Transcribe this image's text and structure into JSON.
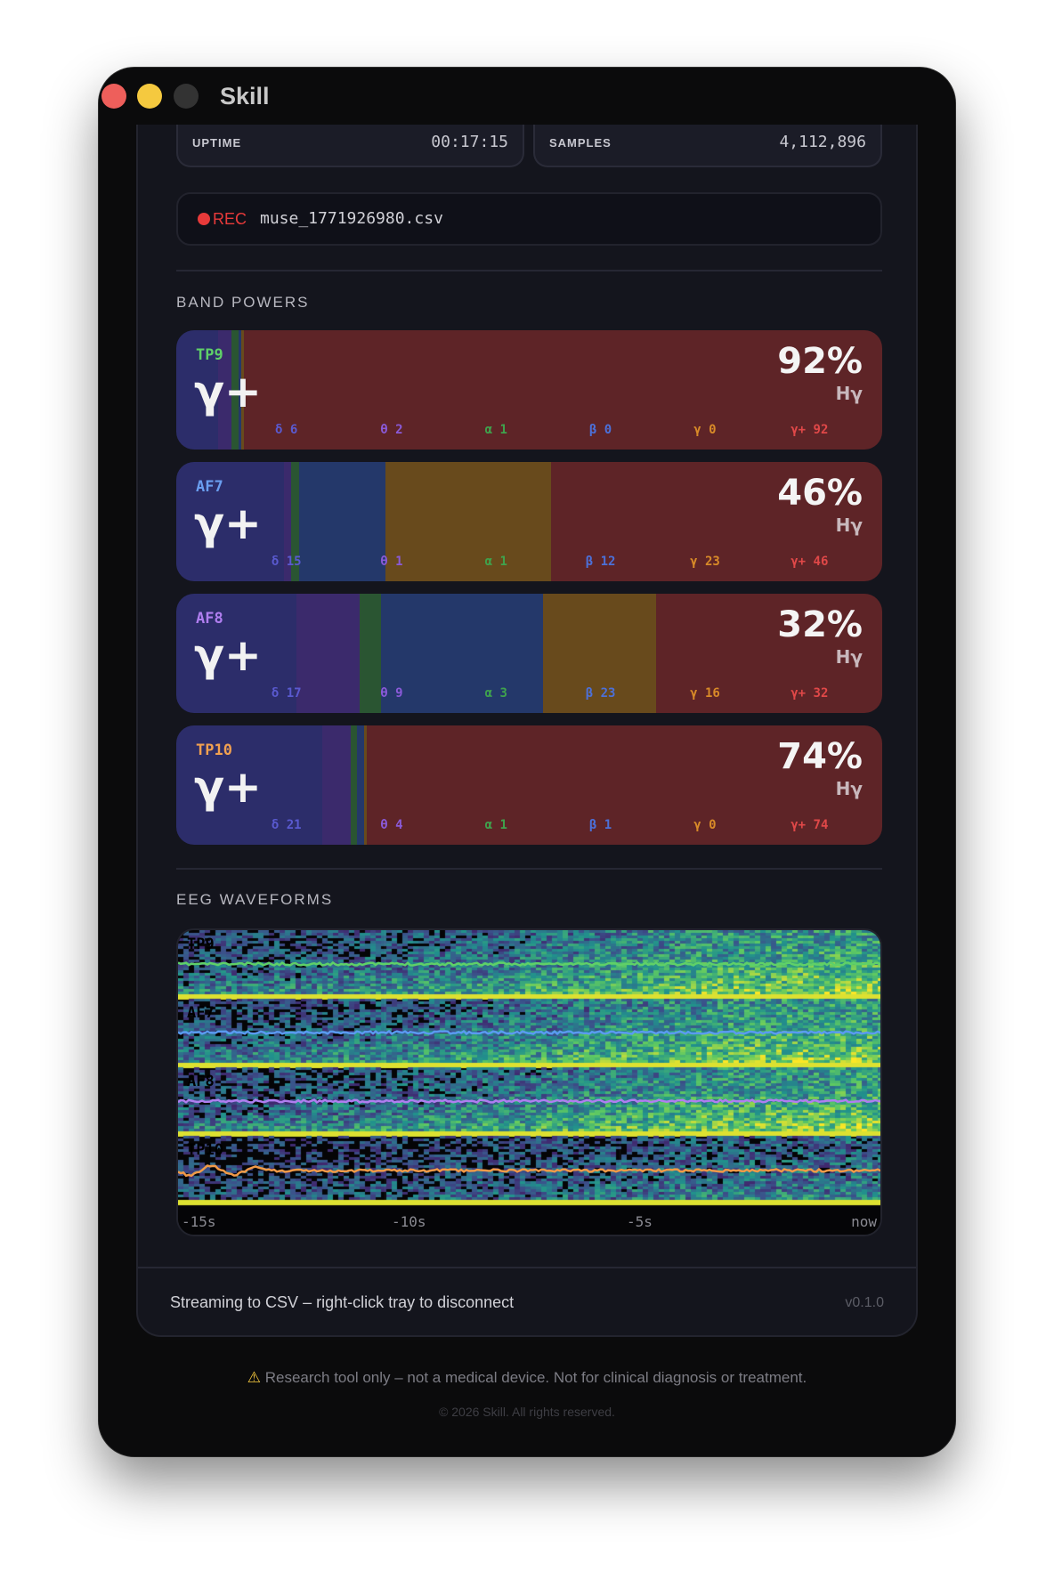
{
  "window": {
    "title": "Skill"
  },
  "stats": [
    {
      "label": "UPTIME",
      "value": "00:17:15"
    },
    {
      "label": "SAMPLES",
      "value": "4,112,896"
    }
  ],
  "recording": {
    "badge": "REC",
    "filename": "muse_1771926980.csv"
  },
  "band_powers": {
    "title": "BAND POWERS",
    "colors": {
      "delta": "#2c2d6a",
      "theta": "#3b2a6c",
      "alpha": "#2a5532",
      "beta": "#24386a",
      "gamma": "#684a1c",
      "gamma_plus": "#5e2427"
    },
    "label_colors": {
      "delta": "#5a5ad0",
      "theta": "#8a5ad8",
      "alpha": "#3fa34d",
      "beta": "#4c70d8",
      "gamma": "#d88a28",
      "gamma_plus": "#e04848"
    },
    "channels": [
      {
        "name": "TP9",
        "color": "#5fd068",
        "dominant": "γ+",
        "percent": "92%",
        "unit": "Hγ",
        "bands": [
          {
            "sym": "δ",
            "val": 6
          },
          {
            "sym": "θ",
            "val": 2
          },
          {
            "sym": "α",
            "val": 1
          },
          {
            "sym": "β",
            "val": 0
          },
          {
            "sym": "γ",
            "val": 0
          },
          {
            "sym": "γ+",
            "val": 92
          }
        ]
      },
      {
        "name": "AF7",
        "color": "#6a9ef0",
        "dominant": "γ+",
        "percent": "46%",
        "unit": "Hγ",
        "bands": [
          {
            "sym": "δ",
            "val": 15
          },
          {
            "sym": "θ",
            "val": 1
          },
          {
            "sym": "α",
            "val": 1
          },
          {
            "sym": "β",
            "val": 12
          },
          {
            "sym": "γ",
            "val": 23
          },
          {
            "sym": "γ+",
            "val": 46
          }
        ]
      },
      {
        "name": "AF8",
        "color": "#b07ef0",
        "dominant": "γ+",
        "percent": "32%",
        "unit": "Hγ",
        "bands": [
          {
            "sym": "δ",
            "val": 17
          },
          {
            "sym": "θ",
            "val": 9
          },
          {
            "sym": "α",
            "val": 3
          },
          {
            "sym": "β",
            "val": 23
          },
          {
            "sym": "γ",
            "val": 16
          },
          {
            "sym": "γ+",
            "val": 32
          }
        ]
      },
      {
        "name": "TP10",
        "color": "#f0a050",
        "dominant": "γ+",
        "percent": "74%",
        "unit": "Hγ",
        "bands": [
          {
            "sym": "δ",
            "val": 21
          },
          {
            "sym": "θ",
            "val": 4
          },
          {
            "sym": "α",
            "val": 1
          },
          {
            "sym": "β",
            "val": 1
          },
          {
            "sym": "γ",
            "val": 0
          },
          {
            "sym": "γ+",
            "val": 74
          }
        ]
      }
    ]
  },
  "eeg": {
    "title": "EEG WAVEFORMS",
    "channels": [
      {
        "name": "TP9",
        "color": "#5fd068"
      },
      {
        "name": "AF7",
        "color": "#5a9af0"
      },
      {
        "name": "AF8",
        "color": "#b07ef0"
      },
      {
        "name": "TP10",
        "color": "#f09a48"
      }
    ],
    "x_ticks": [
      "-15s",
      "-10s",
      "-5s",
      "now"
    ]
  },
  "footer": {
    "status": "Streaming to CSV – right-click tray to disconnect",
    "version": "v0.1.0"
  },
  "disclaimer": {
    "icon": "warning-icon",
    "text": "Research tool only – not a medical device. Not for clinical diagnosis or treatment."
  },
  "copyright": "© 2026 Skill. All rights reserved."
}
